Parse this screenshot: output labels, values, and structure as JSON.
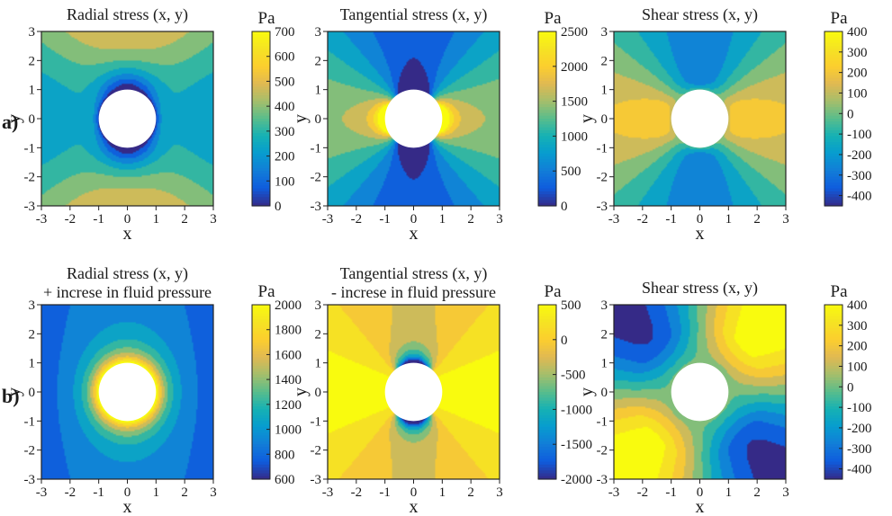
{
  "chart_data": [
    {
      "type": "heatmap",
      "row": "a",
      "colormap": "parula",
      "title": "Radial stress (x, y)",
      "xlabel": "x",
      "ylabel": "y",
      "unit": "Pa",
      "xlim": [
        -3,
        3
      ],
      "ylim": [
        -3,
        3
      ],
      "xticks": [
        "-3",
        "-2",
        "-1",
        "0",
        "1",
        "2",
        "3"
      ],
      "yticks": [
        "3",
        "2",
        "1",
        "0",
        "-1",
        "-2",
        "-3"
      ],
      "clim": [
        0,
        700
      ],
      "cticks": [
        "700",
        "600",
        "500",
        "400",
        "300",
        "200",
        "100",
        "0"
      ],
      "hole_radius": 1,
      "field": "radial_a"
    },
    {
      "type": "heatmap",
      "row": "a",
      "colormap": "parula",
      "title": "Tangential stress (x, y)",
      "xlabel": "x",
      "ylabel": "y",
      "unit": "Pa",
      "xlim": [
        -3,
        3
      ],
      "ylim": [
        -3,
        3
      ],
      "xticks": [
        "-3",
        "-2",
        "-1",
        "0",
        "1",
        "2",
        "3"
      ],
      "yticks": [
        "3",
        "2",
        "1",
        "0",
        "-1",
        "-2",
        "-3"
      ],
      "clim": [
        0,
        2500
      ],
      "cticks": [
        "2500",
        "2000",
        "1500",
        "1000",
        "500",
        "0"
      ],
      "hole_radius": 1,
      "field": "tangential_a"
    },
    {
      "type": "heatmap",
      "row": "a",
      "colormap": "parula",
      "title": "Shear stress (x, y)",
      "xlabel": "x",
      "ylabel": "y",
      "unit": "Pa",
      "xlim": [
        -3,
        3
      ],
      "ylim": [
        -3,
        3
      ],
      "xticks": [
        "-3",
        "-2",
        "-1",
        "0",
        "1",
        "2",
        "3"
      ],
      "yticks": [
        "3",
        "2",
        "1",
        "0",
        "-1",
        "-2",
        "-3"
      ],
      "clim": [
        -450,
        400
      ],
      "cticks": [
        "400",
        "300",
        "200",
        "100",
        "0",
        "-100",
        "-200",
        "-300",
        "-400"
      ],
      "hole_radius": 1,
      "field": "shear_a"
    },
    {
      "type": "heatmap",
      "row": "b",
      "colormap": "parula",
      "title": "Radial stress (x, y)",
      "title2": "+ increse in fluid pressure",
      "xlabel": "x",
      "ylabel": "y",
      "unit": "Pa",
      "xlim": [
        -3,
        3
      ],
      "ylim": [
        -3,
        3
      ],
      "xticks": [
        "-3",
        "-2",
        "-1",
        "0",
        "1",
        "2",
        "3"
      ],
      "yticks": [
        "3",
        "2",
        "1",
        "0",
        "-1",
        "-2",
        "-3"
      ],
      "clim": [
        600,
        2000
      ],
      "cticks": [
        "2000",
        "1800",
        "1600",
        "1400",
        "1200",
        "1000",
        "800",
        "600"
      ],
      "hole_radius": 1,
      "field": "radial_b"
    },
    {
      "type": "heatmap",
      "row": "b",
      "colormap": "parula",
      "title": "Tangential stress (x, y)",
      "title2": "- increse in fluid pressure",
      "xlabel": "x",
      "ylabel": "y",
      "unit": "Pa",
      "xlim": [
        -3,
        3
      ],
      "ylim": [
        -3,
        3
      ],
      "xticks": [
        "-3",
        "-2",
        "-1",
        "0",
        "1",
        "2",
        "3"
      ],
      "yticks": [
        "3",
        "2",
        "1",
        "0",
        "-1",
        "-2",
        "-3"
      ],
      "clim": [
        -2000,
        500
      ],
      "cticks": [
        "500",
        "0",
        "-500",
        "-1000",
        "-1500",
        "-2000"
      ],
      "hole_radius": 1,
      "field": "tangential_b"
    },
    {
      "type": "heatmap",
      "row": "b",
      "colormap": "parula",
      "title": "Shear stress (x, y)",
      "xlabel": "x",
      "ylabel": "y",
      "unit": "Pa",
      "xlim": [
        -3,
        3
      ],
      "ylim": [
        -3,
        3
      ],
      "xticks": [
        "-3",
        "-2",
        "-1",
        "0",
        "1",
        "2",
        "3"
      ],
      "yticks": [
        "3",
        "2",
        "1",
        "0",
        "-1",
        "-2",
        "-3"
      ],
      "clim": [
        -450,
        400
      ],
      "cticks": [
        "400",
        "300",
        "200",
        "100",
        "0",
        "-100",
        "-200",
        "-300",
        "-400"
      ],
      "hole_radius": 1,
      "field": "shear_b"
    }
  ],
  "row_labels": {
    "a": "a)",
    "b": "b)"
  }
}
